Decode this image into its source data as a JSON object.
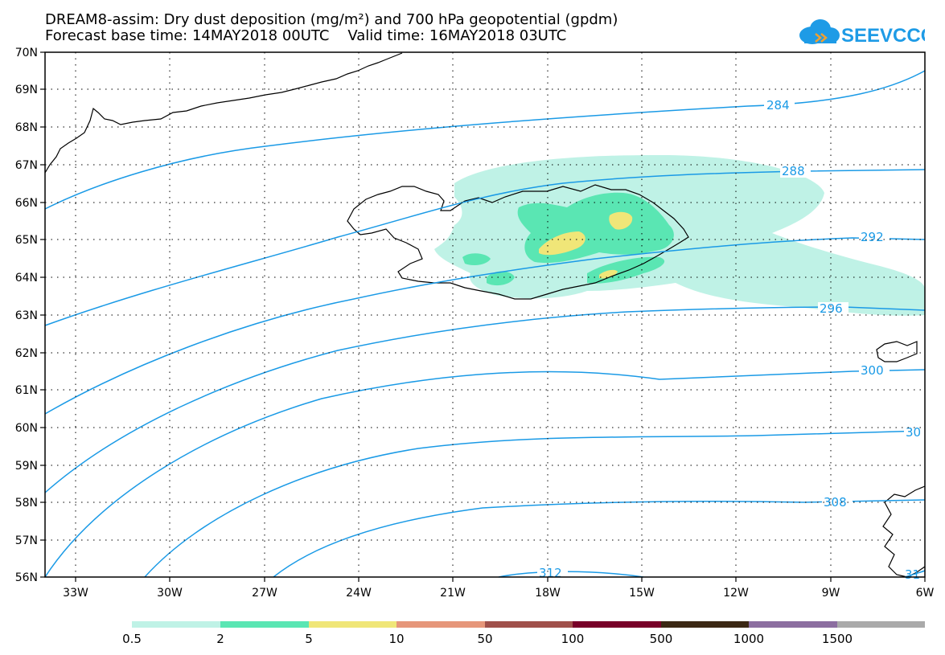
{
  "title": {
    "line1": "DREAM8-assim: Dry dust deposition (mg/m²) and 700 hPa geopotential (gpdm)",
    "line2": "Forecast base time: 14MAY2018 00UTC    Valid time: 16MAY2018 03UTC"
  },
  "logo": {
    "text": "SEEVCCC",
    "icon": "cloud-icon",
    "color": "#1e9be6"
  },
  "map": {
    "lat_labels": [
      "56N",
      "57N",
      "58N",
      "59N",
      "60N",
      "61N",
      "62N",
      "63N",
      "64N",
      "65N",
      "66N",
      "67N",
      "68N",
      "69N",
      "70N"
    ],
    "lon_labels": [
      "33W",
      "30W",
      "27W",
      "24W",
      "21W",
      "18W",
      "15W",
      "12W",
      "9W",
      "6W"
    ],
    "contour_color": "#1a9ae6",
    "contour_labels": [
      "284",
      "288",
      "292",
      "296",
      "300",
      "30",
      "308",
      "312",
      "31"
    ]
  },
  "legend": {
    "colors": [
      "#bff2e6",
      "#5ae6b3",
      "#f0e678",
      "#e6967a",
      "#a0504b",
      "#780028",
      "#3c2814",
      "#8c6ea0",
      "#aaaaaa"
    ],
    "labels": [
      "0.5",
      "2",
      "5",
      "10",
      "50",
      "100",
      "500",
      "1000",
      "1500"
    ]
  }
}
